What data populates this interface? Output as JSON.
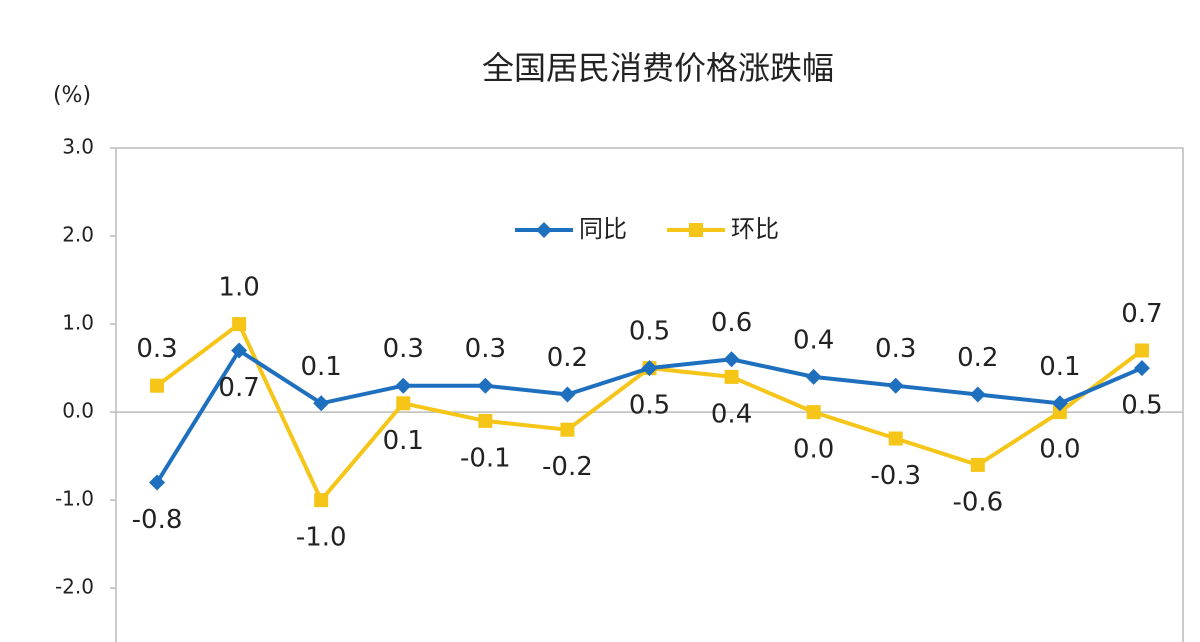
{
  "chart_data": {
    "type": "line",
    "title": "全国居民消费价格涨跌幅",
    "y_label": "(%)",
    "categories": [
      null,
      null,
      null,
      null,
      null,
      null,
      null,
      null,
      null,
      null,
      null,
      null,
      null
    ],
    "series": [
      {
        "name": "同比",
        "color": "#1f6fbf",
        "marker": "diamond",
        "values": [
          -0.8,
          0.7,
          0.1,
          0.3,
          0.3,
          0.2,
          0.5,
          0.6,
          0.4,
          0.3,
          0.2,
          0.1,
          0.5
        ],
        "value_labels": [
          "-0.8",
          "0.7",
          "0.1",
          "0.3",
          "0.3",
          "0.2",
          "0.5",
          "0.6",
          "0.4",
          "0.3",
          "0.2",
          "0.1",
          "0.5"
        ]
      },
      {
        "name": "环比",
        "color": "#f5c518",
        "marker": "square",
        "values": [
          0.3,
          1.0,
          -1.0,
          0.1,
          -0.1,
          -0.2,
          0.5,
          0.4,
          0.0,
          -0.3,
          -0.6,
          0.0,
          0.7
        ],
        "value_labels": [
          "0.3",
          "1.0",
          "-1.0",
          "0.1",
          "-0.1",
          "-0.2",
          "0.5",
          "0.4",
          "0.0",
          "-0.3",
          "-0.6",
          "0.0",
          "0.7"
        ]
      }
    ],
    "ylim": [
      -2.6,
      3.0
    ],
    "yticks": [
      {
        "value": 3,
        "label": "3.0"
      },
      {
        "value": 2,
        "label": "2.0"
      },
      {
        "value": 1,
        "label": "1.0"
      },
      {
        "value": 0,
        "label": "0.0"
      },
      {
        "value": -1,
        "label": "-1.0"
      },
      {
        "value": -2,
        "label": "-2.0"
      }
    ],
    "legend": "top"
  }
}
